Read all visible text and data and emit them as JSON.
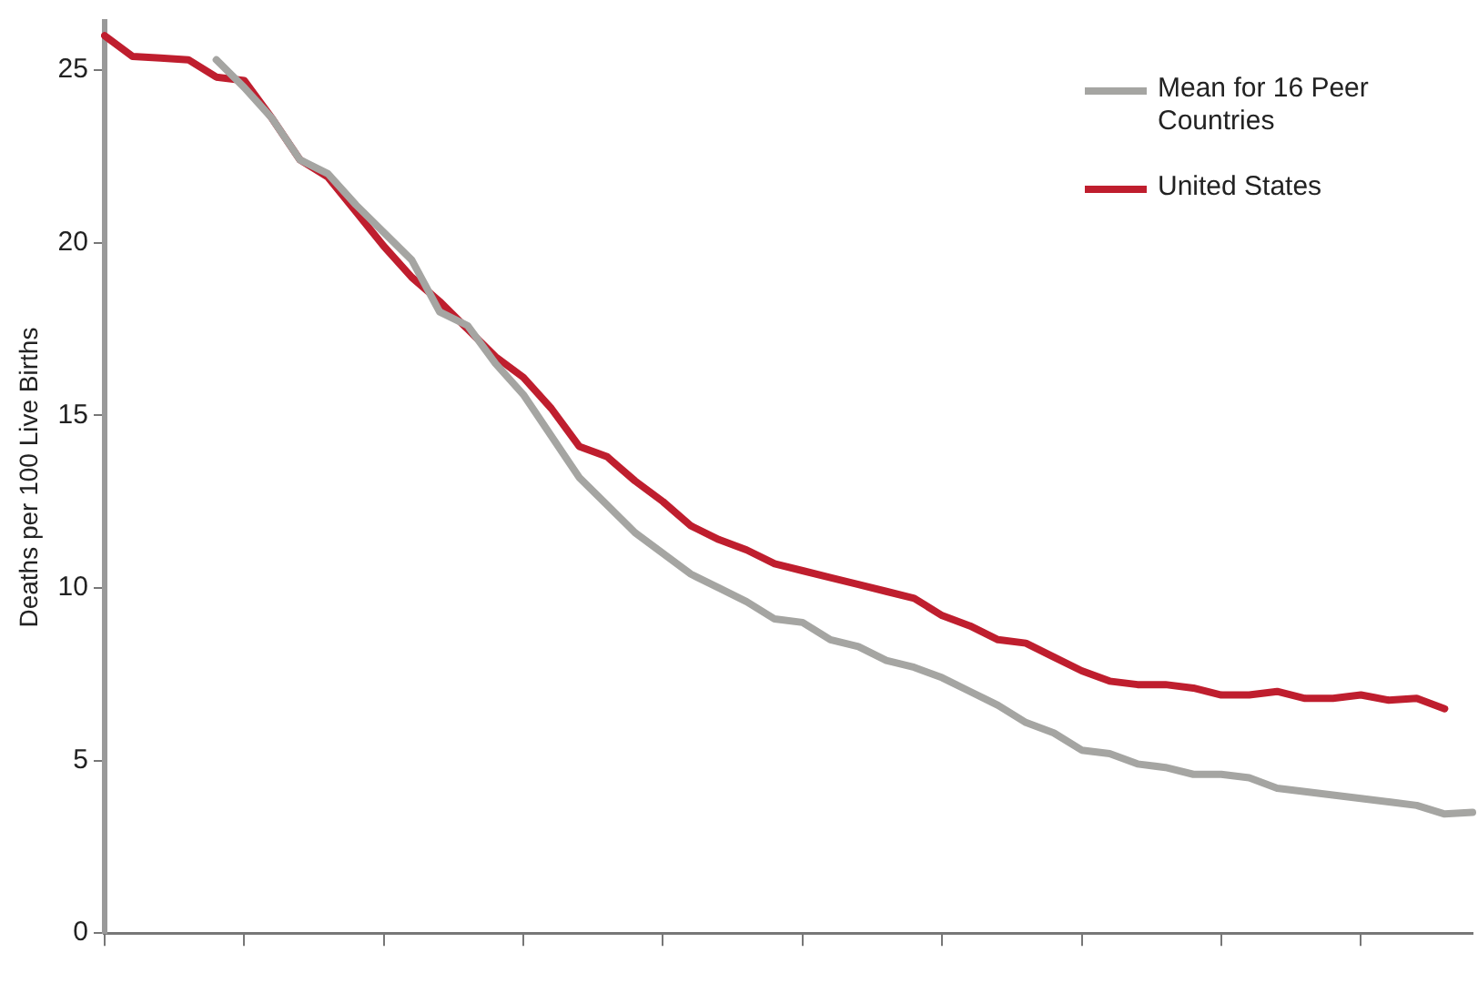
{
  "chart_data": {
    "type": "line",
    "ylabel": "Deaths per 100 Live Births",
    "categories": [
      null,
      null,
      null,
      null,
      null,
      null,
      null,
      null,
      null,
      null,
      null,
      null,
      null,
      null,
      null,
      null,
      null,
      null,
      null,
      null,
      null,
      null,
      null,
      null,
      null,
      null,
      null,
      null,
      null,
      null,
      null,
      null,
      null,
      null,
      null,
      null,
      null,
      null,
      null,
      null,
      null,
      null,
      null,
      null,
      null,
      null,
      null,
      null,
      null,
      null
    ],
    "series": [
      {
        "name": "Mean for 16 Peer Countries",
        "color": "#a5a5a2",
        "values": [
          null,
          null,
          null,
          null,
          25.3,
          24.5,
          23.6,
          22.4,
          22.0,
          21.1,
          20.3,
          19.5,
          18.0,
          17.6,
          16.5,
          15.6,
          14.4,
          13.2,
          12.4,
          11.6,
          11.0,
          10.4,
          10.0,
          9.6,
          9.1,
          9.0,
          8.5,
          8.3,
          7.9,
          7.7,
          7.4,
          7.0,
          6.6,
          6.1,
          5.8,
          5.3,
          5.2,
          4.9,
          4.8,
          4.6,
          4.6,
          4.5,
          4.2,
          4.1,
          4.0,
          3.9,
          3.8,
          3.7,
          3.45,
          3.5
        ]
      },
      {
        "name": "United States",
        "color": "#bf1e2e",
        "values": [
          26.0,
          25.4,
          25.35,
          25.3,
          24.8,
          24.7,
          23.6,
          22.4,
          21.9,
          20.9,
          19.9,
          19.0,
          18.3,
          17.5,
          16.7,
          16.1,
          15.2,
          14.1,
          13.8,
          13.1,
          12.5,
          11.8,
          11.4,
          11.1,
          10.7,
          10.5,
          10.3,
          10.1,
          9.9,
          9.7,
          9.2,
          8.9,
          8.5,
          8.4,
          8.0,
          7.6,
          7.3,
          7.2,
          7.2,
          7.1,
          6.9,
          6.9,
          7.0,
          6.8,
          6.8,
          6.9,
          6.75,
          6.8,
          6.5,
          null
        ]
      }
    ],
    "ylim": [
      0,
      26.4
    ],
    "yticks": [
      0,
      5,
      10,
      15,
      20,
      25
    ],
    "grid": false,
    "legend": "top right",
    "tick_labels": "y",
    "marker": "none",
    "line_style": "solid"
  }
}
